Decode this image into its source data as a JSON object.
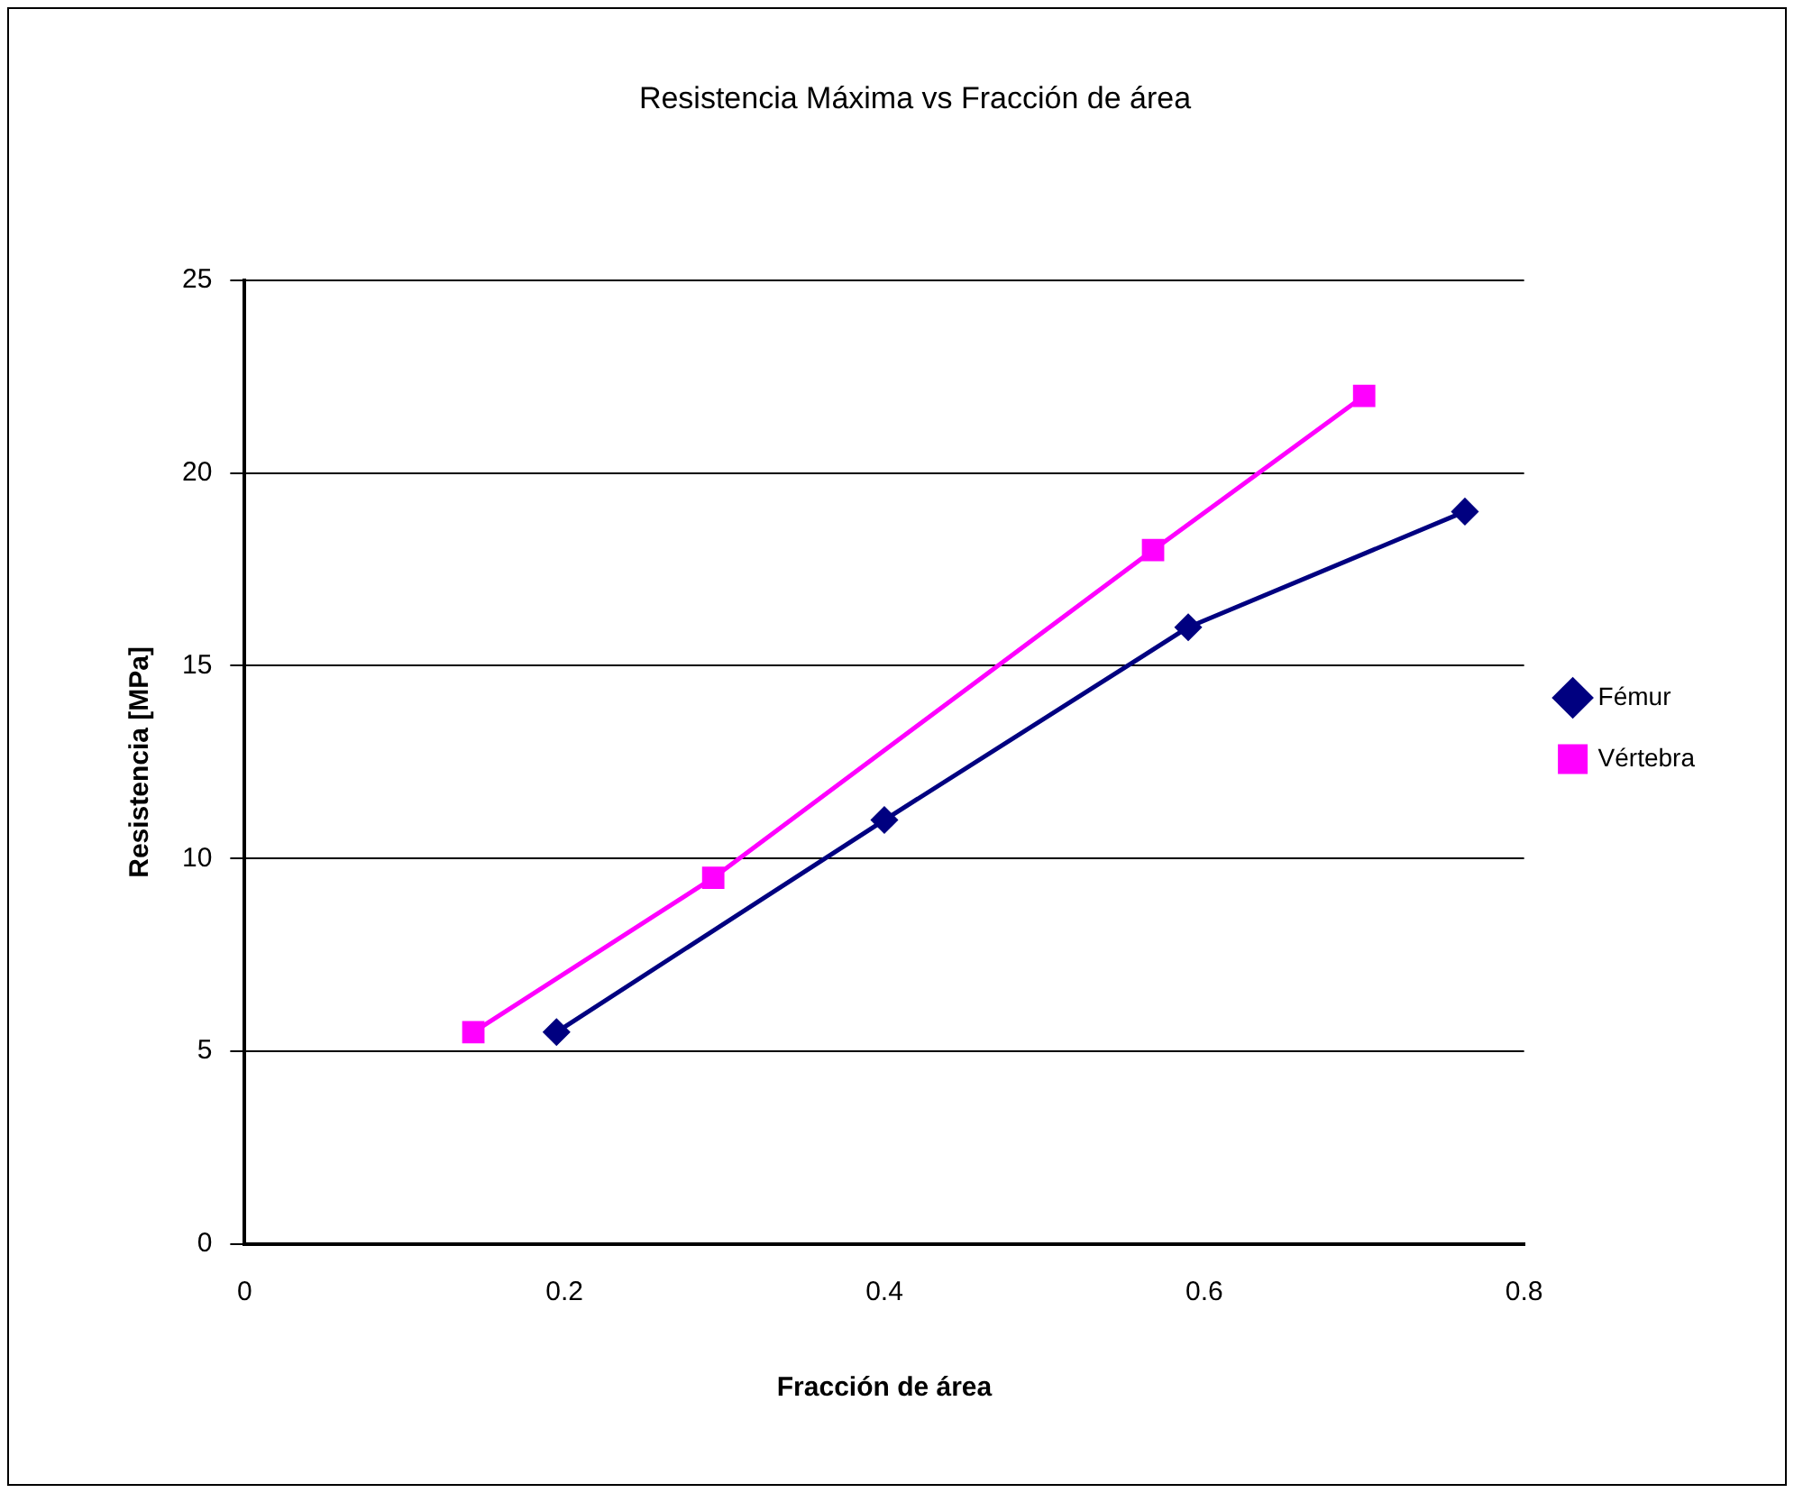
{
  "chart_data": {
    "type": "scatter",
    "title": "Resistencia Máxima vs Fracción de área",
    "xlabel": "Fracción de área",
    "ylabel": "Resistencia [MPa]",
    "xlim": [
      0,
      0.8
    ],
    "xticks": [
      0,
      0.2,
      0.4,
      0.6,
      0.8
    ],
    "ylim": [
      0,
      25
    ],
    "yticks": [
      0,
      5,
      10,
      15,
      20,
      25
    ],
    "grid": "y",
    "legend": "right",
    "series": [
      {
        "name": "Fémur",
        "color": "#000080",
        "type": "line",
        "marker": "diamond",
        "x": [
          0.195,
          0.4,
          0.59,
          0.763
        ],
        "values": [
          5.5,
          11,
          16,
          19
        ]
      },
      {
        "name": "Vértebra",
        "color": "#ff00ff",
        "type": "line",
        "marker": "square",
        "x": [
          0.143,
          0.293,
          0.568,
          0.7
        ],
        "values": [
          5.5,
          9.5,
          18,
          22
        ]
      }
    ]
  }
}
